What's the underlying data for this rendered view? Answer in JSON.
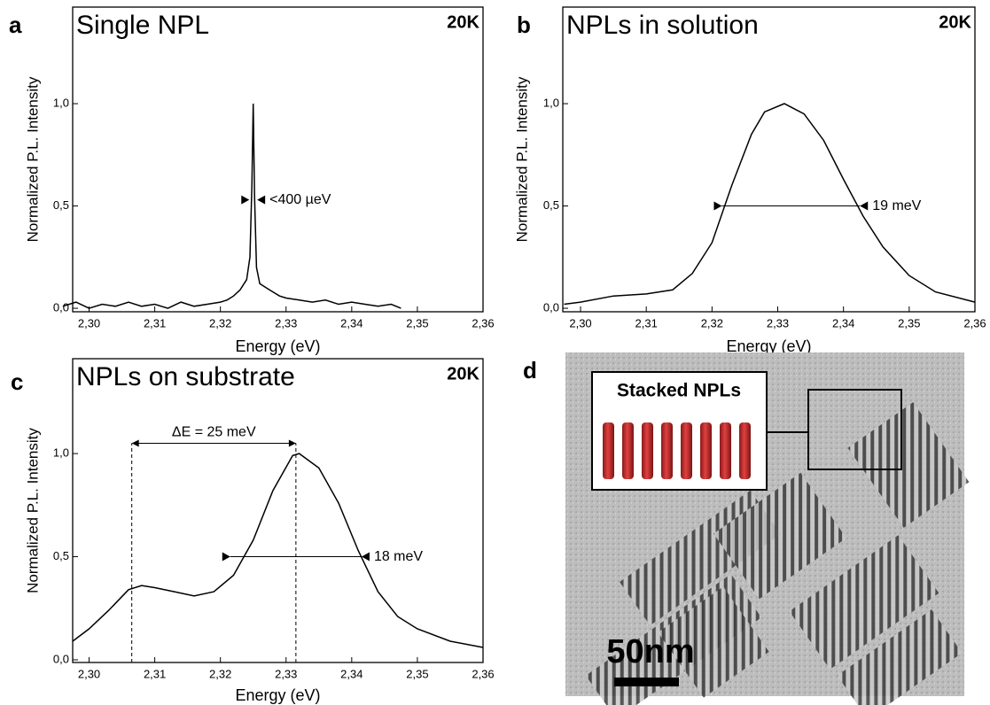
{
  "chart_data": [
    {
      "type": "line",
      "panel": "a",
      "title": "Single NPL",
      "tag": "20K",
      "xlabel": "Energy (eV)",
      "ylabel": "Normalized P.L. Intensity",
      "color": "#000000",
      "x": [
        2.296,
        2.298,
        2.3,
        2.302,
        2.304,
        2.306,
        2.308,
        2.31,
        2.312,
        2.314,
        2.316,
        2.318,
        2.32,
        2.321,
        2.322,
        2.323,
        2.324,
        2.3245,
        2.3248,
        2.325,
        2.3252,
        2.3255,
        2.326,
        2.327,
        2.328,
        2.329,
        2.33,
        2.332,
        2.334,
        2.336,
        2.338,
        2.34,
        2.342,
        2.344,
        2.346,
        2.3475
      ],
      "values": [
        0.01,
        0.03,
        0.0,
        0.02,
        0.01,
        0.03,
        0.01,
        0.02,
        0.0,
        0.03,
        0.01,
        0.02,
        0.03,
        0.04,
        0.06,
        0.09,
        0.14,
        0.25,
        0.6,
        1.0,
        0.55,
        0.2,
        0.12,
        0.1,
        0.08,
        0.06,
        0.05,
        0.04,
        0.03,
        0.04,
        0.02,
        0.03,
        0.02,
        0.01,
        0.02,
        0.0
      ],
      "xlim": [
        2.2975,
        2.36
      ],
      "xticks": [
        {
          "value": 2.3,
          "label": "2,30"
        },
        {
          "value": 2.31,
          "label": "2,31"
        },
        {
          "value": 2.32,
          "label": "2,32"
        },
        {
          "value": 2.33,
          "label": "2,33"
        },
        {
          "value": 2.34,
          "label": "2,34"
        },
        {
          "value": 2.35,
          "label": "2,35"
        },
        {
          "value": 2.36,
          "label": "2,36"
        }
      ],
      "ylim": [
        -0.017,
        1.472
      ],
      "yticks": [
        {
          "value": 0,
          "label": "0,0"
        },
        {
          "value": 0.5,
          "label": "0,5"
        },
        {
          "value": 1.0,
          "label": "1,0"
        }
      ],
      "annotations": [
        {
          "text": "<400 µeV",
          "x": [
            2.3244,
            2.3256
          ],
          "y": 0.53
        }
      ]
    },
    {
      "type": "line",
      "panel": "b",
      "title": "NPLs in solution",
      "tag": "20K",
      "xlabel": "Energy (eV)",
      "ylabel": "Normalized P.L. Intensity",
      "color": "#000000",
      "x": [
        2.2975,
        2.3,
        2.305,
        2.31,
        2.314,
        2.317,
        2.32,
        2.323,
        2.326,
        2.328,
        2.331,
        2.334,
        2.337,
        2.34,
        2.343,
        2.346,
        2.35,
        2.354,
        2.36
      ],
      "values": [
        0.02,
        0.03,
        0.06,
        0.07,
        0.09,
        0.17,
        0.32,
        0.6,
        0.85,
        0.96,
        1.0,
        0.95,
        0.82,
        0.63,
        0.45,
        0.3,
        0.16,
        0.08,
        0.03
      ],
      "xlim": [
        2.2973,
        2.36
      ],
      "xticks": [
        {
          "value": 2.3,
          "label": "2,30"
        },
        {
          "value": 2.31,
          "label": "2,31"
        },
        {
          "value": 2.32,
          "label": "2,32"
        },
        {
          "value": 2.33,
          "label": "2,33"
        },
        {
          "value": 2.34,
          "label": "2,34"
        },
        {
          "value": 2.35,
          "label": "2,35"
        },
        {
          "value": 2.36,
          "label": "2,36"
        }
      ],
      "ylim": [
        -0.017,
        1.472
      ],
      "yticks": [
        {
          "value": 0,
          "label": "0,0"
        },
        {
          "value": 0.5,
          "label": "0,5"
        },
        {
          "value": 1.0,
          "label": "1,0"
        }
      ],
      "annotations": [
        {
          "text": "19 meV",
          "x": [
            2.3215,
            2.3425
          ],
          "y": 0.5
        }
      ]
    },
    {
      "type": "line",
      "panel": "c",
      "title": "NPLs on substrate",
      "tag": "20K",
      "xlabel": "Energy (eV)",
      "ylabel": "Normalized P.L. Intensity",
      "color": "#000000",
      "x": [
        2.2975,
        2.3,
        2.303,
        2.306,
        2.308,
        2.31,
        2.313,
        2.316,
        2.319,
        2.322,
        2.325,
        2.328,
        2.331,
        2.332,
        2.335,
        2.338,
        2.341,
        2.344,
        2.347,
        2.35,
        2.355,
        2.36
      ],
      "values": [
        0.09,
        0.15,
        0.24,
        0.34,
        0.36,
        0.35,
        0.33,
        0.31,
        0.33,
        0.41,
        0.58,
        0.82,
        0.99,
        1.0,
        0.93,
        0.76,
        0.53,
        0.33,
        0.21,
        0.15,
        0.09,
        0.06
      ],
      "xlim": [
        2.2975,
        2.36
      ],
      "xticks": [
        {
          "value": 2.3,
          "label": "2,30"
        },
        {
          "value": 2.31,
          "label": "2,31"
        },
        {
          "value": 2.32,
          "label": "2,32"
        },
        {
          "value": 2.33,
          "label": "2,33"
        },
        {
          "value": 2.34,
          "label": "2,34"
        },
        {
          "value": 2.35,
          "label": "2,35"
        },
        {
          "value": 2.36,
          "label": "2,36"
        }
      ],
      "ylim": [
        -0.013,
        1.46
      ],
      "yticks": [
        {
          "value": 0,
          "label": "0,0"
        },
        {
          "value": 0.5,
          "label": "0,5"
        },
        {
          "value": 1.0,
          "label": "1,0"
        }
      ],
      "annotations": [
        {
          "text": "ΔE = 25 meV",
          "x": [
            2.3065,
            2.3315
          ],
          "y": 1.05,
          "dashed": true
        },
        {
          "text": "18 meV",
          "x": [
            2.3215,
            2.3415
          ],
          "y": 0.5
        }
      ]
    },
    {
      "type": "image",
      "panel": "d",
      "inset_title": "Stacked NPLs",
      "scale_bar": "50nm"
    }
  ]
}
